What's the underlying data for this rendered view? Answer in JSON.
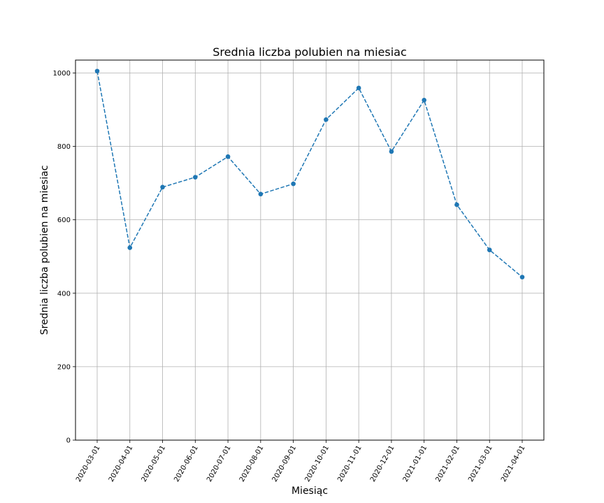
{
  "chart_data": {
    "type": "line",
    "title": "Srednia liczba polubien na miesiac",
    "xlabel": "Miesiąc",
    "ylabel": "Srednia liczba polubien na miesiac",
    "categories": [
      "2020-03-01",
      "2020-04-01",
      "2020-05-01",
      "2020-06-01",
      "2020-07-01",
      "2020-08-01",
      "2020-09-01",
      "2020-10-01",
      "2020-11-01",
      "2020-12-01",
      "2021-01-01",
      "2021-02-01",
      "2021-03-01",
      "2021-04-01"
    ],
    "series": [
      {
        "values": [
          1005,
          524,
          689,
          716,
          772,
          670,
          698,
          873,
          959,
          786,
          926,
          641,
          518,
          444
        ]
      }
    ],
    "ylim": [
      0,
      1035
    ],
    "yticks": [
      0,
      200,
      400,
      600,
      800,
      1000
    ],
    "grid": true,
    "line_style": "dashed",
    "marker": "circle",
    "color": "#1f77b4"
  }
}
